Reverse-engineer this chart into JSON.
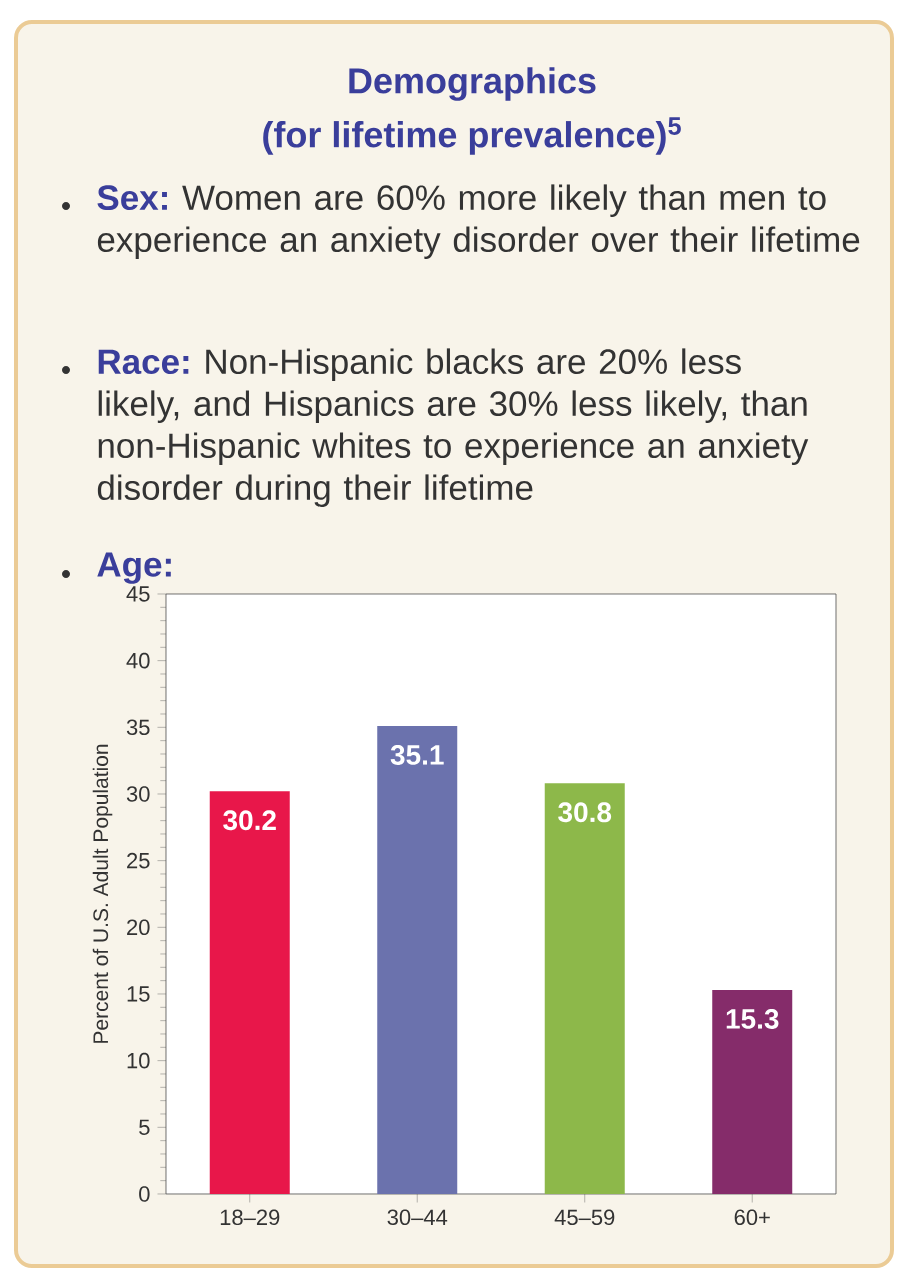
{
  "chart_data": {
    "type": "bar",
    "title": "Demographics",
    "subtitle": "(for lifetime prevalence)$^{5}$",
    "annotations": [
      "Sex:",
      "Women are 60% more likely than men to experience an anxiety disorder over their lifetime",
      "Race:",
      "Non-Hispanic blacks are 20% less likely, and Hispanics are 30% less likely, than non-Hispanic whites to experience an anxiety disorder during their lifetime",
      "Age:"
    ],
    "ylabel": "Percent of U.S. Adult Population",
    "categories": [
      "18–29",
      "30–44",
      "45–59",
      "60+"
    ],
    "values": [
      30.2,
      35.1,
      30.8,
      15.3
    ],
    "colors": [
      "#e8174a",
      "#6b72ad",
      "#8db84a",
      "#852c6a"
    ],
    "ylim": [
      0,
      45
    ],
    "yticks": [
      0,
      5,
      10,
      15,
      20,
      25,
      30,
      35,
      40,
      45
    ],
    "data_labels": true
  }
}
